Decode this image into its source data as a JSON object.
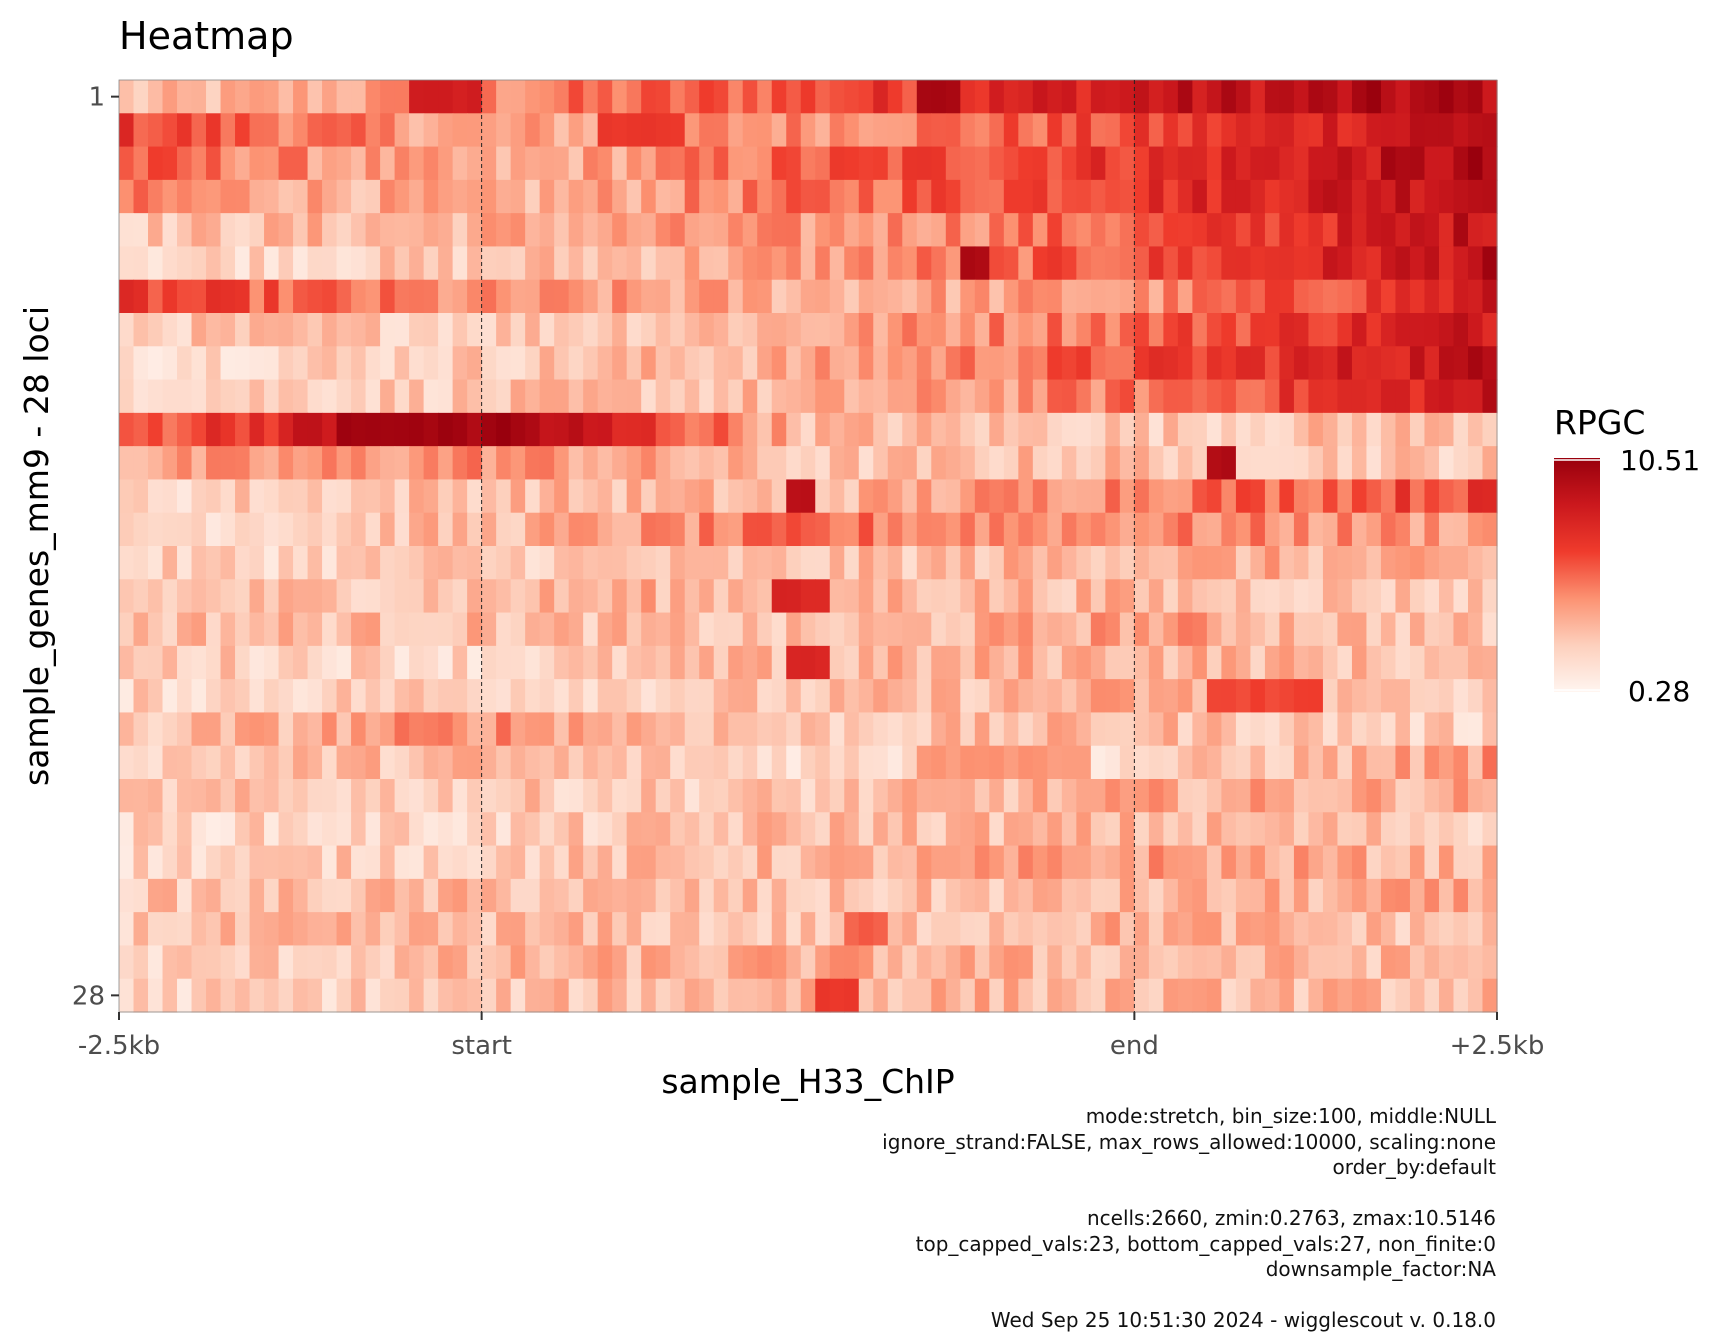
{
  "chart_data": {
    "type": "heatmap",
    "title": "Heatmap",
    "xlabel": "sample_H33_ChIP",
    "ylabel": "sample_genes_mm9 - 28 loci",
    "x_ticks": [
      "-2.5kb",
      "start",
      "end",
      "+2.5kb"
    ],
    "x_tick_positions_bins": [
      0,
      25,
      70,
      95
    ],
    "region_markers_bins": [
      25,
      70
    ],
    "y_ticks": [
      "1",
      "28"
    ],
    "rows": 28,
    "cols": 95,
    "legend": {
      "title": "RPGC",
      "max_label": "10.51",
      "min_label": "0.28",
      "min": 0.28,
      "max": 10.51,
      "placement": "right"
    },
    "colorscale": [
      "#fff5f0",
      "#fdd0bd",
      "#fc9272",
      "#ef3b2c",
      "#cb181d",
      "#99000d"
    ],
    "row_profiles": [
      [
        2.5,
        4.5,
        6.0,
        8.5,
        9.5
      ],
      [
        6.5,
        3.5,
        4.5,
        6.0,
        9.5
      ],
      [
        5.5,
        3.0,
        5.5,
        7.0,
        9.5
      ],
      [
        4.5,
        3.0,
        5.0,
        7.0,
        9.5
      ],
      [
        2.5,
        3.5,
        4.0,
        5.5,
        9.0
      ],
      [
        2.0,
        2.5,
        4.0,
        6.0,
        9.0
      ],
      [
        6.5,
        4.0,
        3.5,
        4.0,
        8.0
      ],
      [
        2.5,
        2.5,
        3.5,
        5.5,
        8.5
      ],
      [
        2.0,
        2.5,
        3.5,
        6.0,
        9.0
      ],
      [
        2.5,
        2.5,
        3.0,
        5.0,
        8.5
      ],
      [
        5.5,
        10.5,
        3.0,
        2.5,
        3.0
      ],
      [
        3.5,
        4.5,
        2.5,
        3.0,
        2.5
      ],
      [
        2.0,
        3.0,
        3.0,
        5.0,
        6.5
      ],
      [
        2.0,
        3.0,
        5.0,
        4.5,
        4.0
      ],
      [
        2.0,
        2.5,
        2.5,
        3.5,
        3.0
      ],
      [
        2.5,
        3.0,
        3.5,
        3.0,
        2.5
      ],
      [
        3.0,
        3.0,
        2.5,
        4.0,
        2.5
      ],
      [
        2.5,
        2.0,
        3.0,
        3.5,
        2.5
      ],
      [
        2.0,
        2.5,
        2.5,
        3.5,
        2.0
      ],
      [
        2.5,
        4.5,
        2.5,
        3.0,
        2.0
      ],
      [
        2.5,
        3.0,
        2.0,
        2.0,
        4.0
      ],
      [
        2.5,
        2.5,
        2.5,
        3.5,
        3.5
      ],
      [
        2.0,
        2.0,
        3.0,
        3.0,
        2.5
      ],
      [
        2.0,
        2.5,
        3.0,
        4.0,
        3.0
      ],
      [
        2.5,
        3.0,
        2.5,
        3.0,
        3.5
      ],
      [
        2.5,
        3.0,
        2.5,
        3.5,
        2.5
      ],
      [
        2.0,
        3.0,
        3.5,
        3.0,
        3.0
      ],
      [
        2.0,
        2.5,
        3.5,
        3.0,
        3.0
      ]
    ],
    "hot_spots": [
      {
        "row": 10,
        "from_bin": 15,
        "to_bin": 23,
        "value": 10.5
      },
      {
        "row": 1,
        "from_bin": 33,
        "to_bin": 38,
        "value": 7.0
      },
      {
        "row": 0,
        "from_bin": 20,
        "to_bin": 24,
        "value": 8.5
      },
      {
        "row": 0,
        "from_bin": 55,
        "to_bin": 57,
        "value": 10.0
      },
      {
        "row": 12,
        "from_bin": 46,
        "to_bin": 47,
        "value": 9.5
      },
      {
        "row": 15,
        "from_bin": 45,
        "to_bin": 48,
        "value": 8.0
      },
      {
        "row": 17,
        "from_bin": 46,
        "to_bin": 48,
        "value": 8.0
      },
      {
        "row": 18,
        "from_bin": 75,
        "to_bin": 82,
        "value": 6.5
      },
      {
        "row": 20,
        "from_bin": 55,
        "to_bin": 66,
        "value": 4.5
      },
      {
        "row": 25,
        "from_bin": 50,
        "to_bin": 52,
        "value": 6.0
      },
      {
        "row": 27,
        "from_bin": 48,
        "to_bin": 50,
        "value": 7.0
      },
      {
        "row": 11,
        "from_bin": 75,
        "to_bin": 76,
        "value": 10.0
      },
      {
        "row": 5,
        "from_bin": 58,
        "to_bin": 59,
        "value": 10.0
      }
    ]
  },
  "caption_lines": [
    "mode:stretch, bin_size:100, middle:NULL",
    "ignore_strand:FALSE, max_rows_allowed:10000, scaling:none",
    "order_by:default",
    "",
    "ncells:2660, zmin:0.2763, zmax:10.5146",
    "top_capped_vals:23, bottom_capped_vals:27, non_finite:0",
    "downsample_factor:NA",
    "",
    "Wed Sep 25 10:51:30 2024 - wigglescout v. 0.18.0"
  ]
}
